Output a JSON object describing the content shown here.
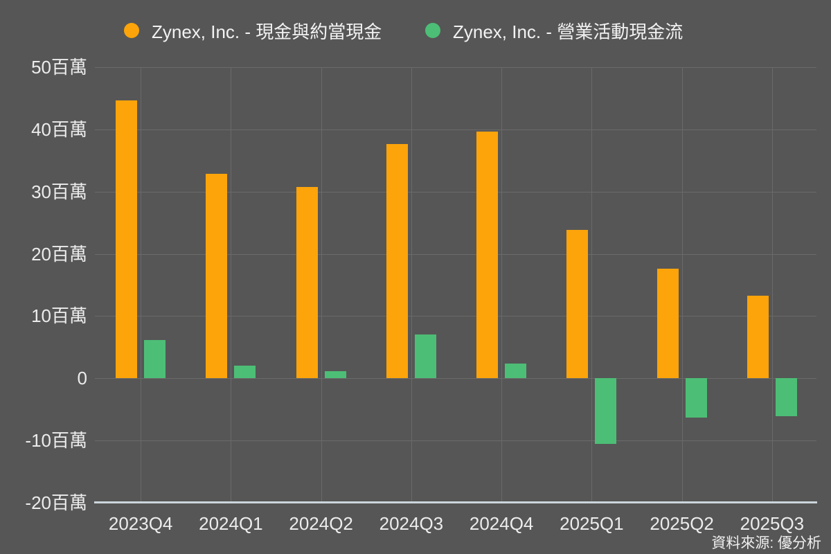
{
  "chart_data": {
    "type": "bar",
    "title": "",
    "categories": [
      "2023Q4",
      "2024Q1",
      "2024Q2",
      "2024Q3",
      "2024Q4",
      "2025Q1",
      "2025Q2",
      "2025Q3"
    ],
    "series": [
      {
        "name": "Zynex, Inc. - 現金與約當現金",
        "color": "#FCA40A",
        "values": [
          44.7,
          32.9,
          30.8,
          37.6,
          39.6,
          23.8,
          17.6,
          13.3
        ]
      },
      {
        "name": "Zynex, Inc. - 營業活動現金流",
        "color": "#4DBE76",
        "values": [
          6.2,
          2.0,
          1.1,
          7.0,
          2.4,
          -10.5,
          -6.3,
          -6.1
        ]
      }
    ],
    "ylabel": "百萬",
    "xlabel": "",
    "ylim": [
      -20,
      50
    ],
    "yticks": [
      50,
      40,
      30,
      20,
      10,
      0,
      -10,
      -20
    ],
    "ytick_labels": [
      "50百萬",
      "40百萬",
      "30百萬",
      "20百萬",
      "10百萬",
      "0",
      "-10百萬",
      "-20百萬"
    ],
    "grid": true,
    "legend_position": "top"
  },
  "source_note": "資料來源: 優分析",
  "colors": {
    "background": "#565656",
    "gridline": "#6A6A6A",
    "axis_line": "#CCD6DB",
    "text": "#ECECEC",
    "series_cash": "#FCA40A",
    "series_ocf": "#4DBE76"
  }
}
